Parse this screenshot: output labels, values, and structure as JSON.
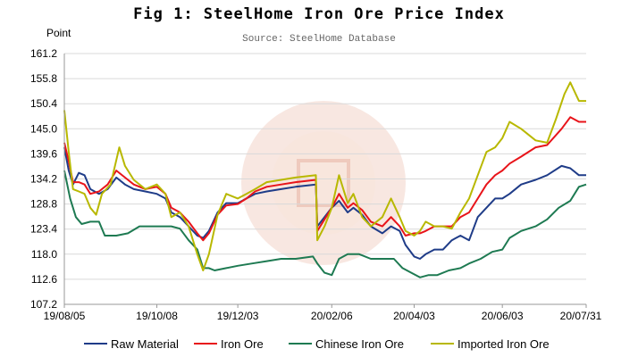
{
  "title": "Fig 1: SteelHome Iron Ore Price Index",
  "subtitle": "Source: SteelHome Database",
  "colors": {
    "raw_material": "#1f3c88",
    "iron_ore": "#e8141a",
    "chinese_iron_ore": "#1e7a52",
    "imported_iron_ore": "#b8b800",
    "watermark": "#f3d3c8"
  },
  "chart_data": {
    "type": "line",
    "ylabel": "Point",
    "ylim": [
      107.2,
      161.2
    ],
    "yticks": [
      "161.2",
      "155.8",
      "150.4",
      "145.0",
      "139.6",
      "134.2",
      "128.8",
      "123.4",
      "118.0",
      "112.6",
      "107.2"
    ],
    "xticks": [
      "19/08/05",
      "19/10/08",
      "19/12/03",
      "20/02/06",
      "20/04/03",
      "20/06/03",
      "20/07/31"
    ],
    "xtick_values": [
      0,
      64,
      120,
      185,
      242,
      303,
      361
    ],
    "xlim": [
      0,
      361
    ],
    "grid": "horizontal",
    "legend_position": "bottom",
    "series": [
      {
        "name": "Raw Material",
        "key": "raw_material",
        "points": [
          [
            0,
            141
          ],
          [
            3,
            136
          ],
          [
            6,
            133
          ],
          [
            10,
            135.5
          ],
          [
            14,
            135
          ],
          [
            18,
            132
          ],
          [
            24,
            131
          ],
          [
            30,
            132
          ],
          [
            36,
            134.5
          ],
          [
            42,
            133
          ],
          [
            48,
            132
          ],
          [
            56,
            131.5
          ],
          [
            64,
            131
          ],
          [
            70,
            130
          ],
          [
            74,
            127
          ],
          [
            80,
            126
          ],
          [
            86,
            124
          ],
          [
            92,
            122
          ],
          [
            96,
            121.5
          ],
          [
            100,
            123
          ],
          [
            106,
            127
          ],
          [
            112,
            129
          ],
          [
            120,
            129
          ],
          [
            126,
            130
          ],
          [
            132,
            131
          ],
          [
            140,
            131.5
          ],
          [
            150,
            132
          ],
          [
            160,
            132.5
          ],
          [
            174,
            133
          ],
          [
            175,
            124
          ],
          [
            180,
            126
          ],
          [
            185,
            128
          ],
          [
            190,
            129.5
          ],
          [
            196,
            127
          ],
          [
            200,
            128
          ],
          [
            206,
            126.5
          ],
          [
            212,
            124
          ],
          [
            220,
            122.5
          ],
          [
            226,
            124
          ],
          [
            232,
            123
          ],
          [
            236,
            120
          ],
          [
            242,
            117.5
          ],
          [
            246,
            117
          ],
          [
            250,
            118
          ],
          [
            256,
            119
          ],
          [
            262,
            119
          ],
          [
            268,
            121
          ],
          [
            274,
            122
          ],
          [
            280,
            121
          ],
          [
            286,
            126
          ],
          [
            292,
            128
          ],
          [
            298,
            130
          ],
          [
            303,
            130
          ],
          [
            308,
            131
          ],
          [
            316,
            133
          ],
          [
            326,
            134
          ],
          [
            334,
            135
          ],
          [
            344,
            137
          ],
          [
            350,
            136.5
          ],
          [
            356,
            135
          ],
          [
            361,
            135
          ]
        ]
      },
      {
        "name": "Iron Ore",
        "key": "iron_ore",
        "points": [
          [
            0,
            142
          ],
          [
            3,
            138
          ],
          [
            6,
            133.5
          ],
          [
            10,
            133.5
          ],
          [
            14,
            133
          ],
          [
            18,
            131
          ],
          [
            24,
            131.5
          ],
          [
            30,
            133
          ],
          [
            36,
            136
          ],
          [
            42,
            134.5
          ],
          [
            48,
            133
          ],
          [
            56,
            132
          ],
          [
            64,
            132.5
          ],
          [
            70,
            131
          ],
          [
            74,
            128
          ],
          [
            80,
            127
          ],
          [
            86,
            125
          ],
          [
            92,
            122.5
          ],
          [
            96,
            121
          ],
          [
            100,
            122.5
          ],
          [
            106,
            126.5
          ],
          [
            112,
            128.5
          ],
          [
            120,
            128.8
          ],
          [
            126,
            130
          ],
          [
            132,
            131.5
          ],
          [
            140,
            132.5
          ],
          [
            150,
            133
          ],
          [
            160,
            133.5
          ],
          [
            174,
            134
          ],
          [
            175,
            123
          ],
          [
            180,
            125.5
          ],
          [
            185,
            128
          ],
          [
            190,
            131
          ],
          [
            196,
            128
          ],
          [
            200,
            129
          ],
          [
            206,
            127.5
          ],
          [
            212,
            125
          ],
          [
            220,
            124
          ],
          [
            226,
            126
          ],
          [
            232,
            124
          ],
          [
            236,
            122
          ],
          [
            242,
            122.5
          ],
          [
            246,
            122.5
          ],
          [
            250,
            123
          ],
          [
            256,
            124
          ],
          [
            262,
            124
          ],
          [
            268,
            124
          ],
          [
            274,
            126
          ],
          [
            280,
            127
          ],
          [
            286,
            130
          ],
          [
            292,
            133
          ],
          [
            298,
            135
          ],
          [
            303,
            136
          ],
          [
            308,
            137.5
          ],
          [
            316,
            139
          ],
          [
            326,
            141
          ],
          [
            334,
            141.5
          ],
          [
            344,
            145
          ],
          [
            350,
            147.5
          ],
          [
            356,
            146.5
          ],
          [
            361,
            146.5
          ]
        ]
      },
      {
        "name": "Chinese Iron Ore",
        "key": "chinese_iron_ore",
        "points": [
          [
            0,
            136
          ],
          [
            4,
            130
          ],
          [
            8,
            126
          ],
          [
            12,
            124.5
          ],
          [
            18,
            125
          ],
          [
            24,
            125
          ],
          [
            28,
            122
          ],
          [
            36,
            122
          ],
          [
            44,
            122.5
          ],
          [
            52,
            124
          ],
          [
            60,
            124
          ],
          [
            66,
            124
          ],
          [
            74,
            124
          ],
          [
            80,
            123.5
          ],
          [
            86,
            121
          ],
          [
            92,
            119
          ],
          [
            96,
            115
          ],
          [
            100,
            115
          ],
          [
            104,
            114.5
          ],
          [
            112,
            115
          ],
          [
            120,
            115.5
          ],
          [
            130,
            116
          ],
          [
            140,
            116.5
          ],
          [
            150,
            117
          ],
          [
            160,
            117
          ],
          [
            172,
            117.5
          ],
          [
            175,
            116
          ],
          [
            180,
            114
          ],
          [
            185,
            113.5
          ],
          [
            190,
            117
          ],
          [
            196,
            118
          ],
          [
            204,
            118
          ],
          [
            212,
            117
          ],
          [
            220,
            117
          ],
          [
            228,
            117
          ],
          [
            234,
            115
          ],
          [
            240,
            114
          ],
          [
            246,
            113
          ],
          [
            252,
            113.5
          ],
          [
            258,
            113.5
          ],
          [
            266,
            114.5
          ],
          [
            274,
            115
          ],
          [
            280,
            116
          ],
          [
            288,
            117
          ],
          [
            296,
            118.5
          ],
          [
            303,
            119
          ],
          [
            308,
            121.5
          ],
          [
            316,
            123
          ],
          [
            326,
            124
          ],
          [
            334,
            125.5
          ],
          [
            342,
            128
          ],
          [
            350,
            129.5
          ],
          [
            356,
            132.5
          ],
          [
            361,
            133
          ]
        ]
      },
      {
        "name": "Imported Iron Ore",
        "key": "imported_iron_ore",
        "points": [
          [
            0,
            149
          ],
          [
            3,
            140
          ],
          [
            6,
            132
          ],
          [
            10,
            131.5
          ],
          [
            14,
            131
          ],
          [
            18,
            128
          ],
          [
            22,
            126.5
          ],
          [
            26,
            131
          ],
          [
            32,
            133
          ],
          [
            38,
            141
          ],
          [
            42,
            137
          ],
          [
            48,
            134
          ],
          [
            56,
            132
          ],
          [
            64,
            133
          ],
          [
            70,
            131
          ],
          [
            74,
            126
          ],
          [
            80,
            127
          ],
          [
            86,
            124
          ],
          [
            92,
            118
          ],
          [
            96,
            114.5
          ],
          [
            100,
            118
          ],
          [
            106,
            126.5
          ],
          [
            112,
            131
          ],
          [
            120,
            130
          ],
          [
            126,
            131
          ],
          [
            132,
            132
          ],
          [
            140,
            133.5
          ],
          [
            150,
            134
          ],
          [
            160,
            134.5
          ],
          [
            174,
            135
          ],
          [
            175,
            121
          ],
          [
            180,
            124
          ],
          [
            185,
            128
          ],
          [
            190,
            135
          ],
          [
            196,
            129
          ],
          [
            200,
            131
          ],
          [
            206,
            126
          ],
          [
            212,
            124
          ],
          [
            220,
            126
          ],
          [
            226,
            130
          ],
          [
            232,
            126
          ],
          [
            236,
            123
          ],
          [
            242,
            122
          ],
          [
            246,
            123
          ],
          [
            250,
            125
          ],
          [
            256,
            124
          ],
          [
            262,
            124
          ],
          [
            268,
            123.5
          ],
          [
            274,
            127
          ],
          [
            280,
            130
          ],
          [
            286,
            135
          ],
          [
            292,
            140
          ],
          [
            298,
            141
          ],
          [
            303,
            143
          ],
          [
            308,
            146.5
          ],
          [
            316,
            145
          ],
          [
            326,
            142.5
          ],
          [
            334,
            142
          ],
          [
            340,
            147
          ],
          [
            346,
            152.5
          ],
          [
            350,
            155
          ],
          [
            356,
            151
          ],
          [
            361,
            151
          ]
        ]
      }
    ]
  }
}
